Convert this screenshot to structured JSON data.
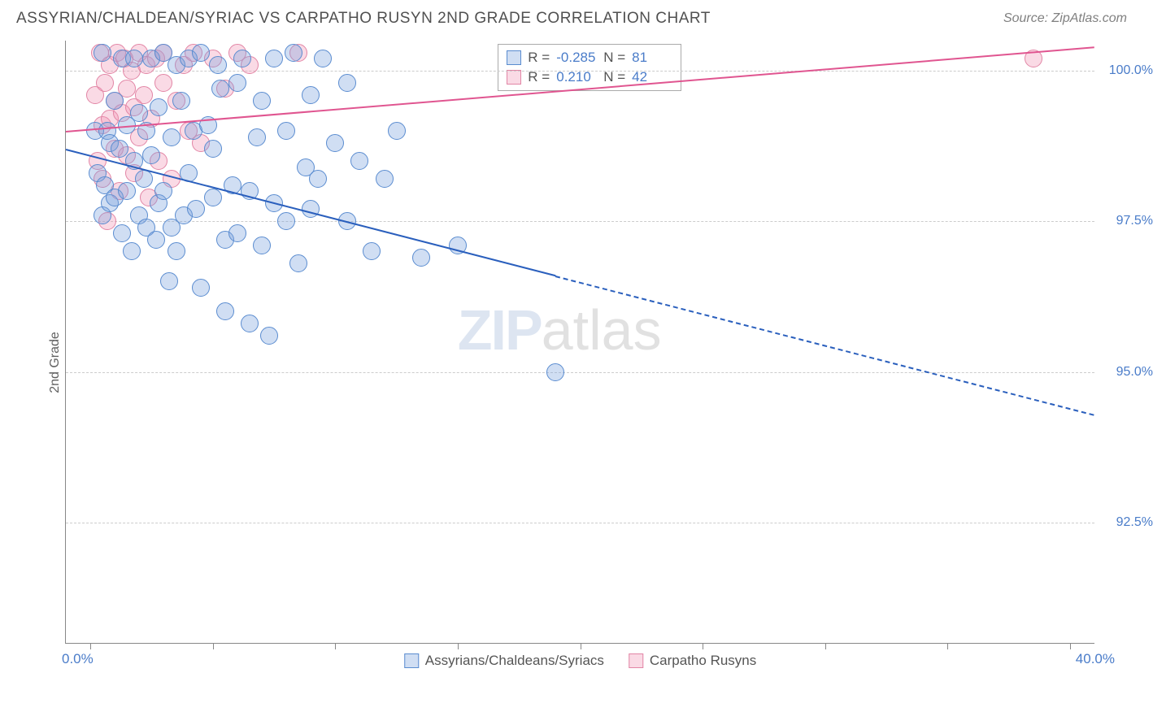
{
  "title": "ASSYRIAN/CHALDEAN/SYRIAC VS CARPATHO RUSYN 2ND GRADE CORRELATION CHART",
  "source_label": "Source:",
  "source_site": "ZipAtlas.com",
  "watermark": {
    "part1": "ZIP",
    "part2": "atlas"
  },
  "y_axis": {
    "label": "2nd Grade",
    "min": 90.5,
    "max": 100.5,
    "ticks": [
      92.5,
      95.0,
      97.5,
      100.0
    ],
    "tick_labels": [
      "92.5%",
      "95.0%",
      "97.5%",
      "100.0%"
    ],
    "tick_color": "#4a7cc9",
    "grid_color": "#cccccc"
  },
  "x_axis": {
    "min": -1.0,
    "max": 41.0,
    "left_label": "0.0%",
    "right_label": "40.0%",
    "ticks": [
      0,
      5,
      10,
      15,
      20,
      25,
      30,
      35,
      40
    ],
    "label_color": "#4a7cc9"
  },
  "series": {
    "blue": {
      "name": "Assyrians/Chaldeans/Syriacs",
      "fill": "rgba(120,160,220,0.35)",
      "stroke": "#5a8cd0",
      "line_color": "#2a5fbd",
      "marker_radius": 11,
      "R": "-0.285",
      "N": "81",
      "trend": {
        "x1": -1,
        "y1": 98.7,
        "x2": 41,
        "y2": 94.3,
        "solid_until_x": 19
      },
      "points": [
        [
          0.2,
          99.0
        ],
        [
          0.3,
          98.3
        ],
        [
          0.5,
          100.3
        ],
        [
          0.5,
          97.6
        ],
        [
          0.6,
          98.1
        ],
        [
          0.7,
          99.0
        ],
        [
          0.8,
          97.8
        ],
        [
          0.8,
          98.8
        ],
        [
          1.0,
          99.5
        ],
        [
          1.0,
          97.9
        ],
        [
          1.2,
          98.7
        ],
        [
          1.3,
          100.2
        ],
        [
          1.3,
          97.3
        ],
        [
          1.5,
          98.0
        ],
        [
          1.5,
          99.1
        ],
        [
          1.7,
          97.0
        ],
        [
          1.8,
          100.2
        ],
        [
          1.8,
          98.5
        ],
        [
          2.0,
          99.3
        ],
        [
          2.0,
          97.6
        ],
        [
          2.2,
          98.2
        ],
        [
          2.3,
          99.0
        ],
        [
          2.3,
          97.4
        ],
        [
          2.5,
          100.2
        ],
        [
          2.5,
          98.6
        ],
        [
          2.7,
          97.2
        ],
        [
          2.8,
          97.8
        ],
        [
          2.8,
          99.4
        ],
        [
          3.0,
          98.0
        ],
        [
          3.0,
          100.3
        ],
        [
          3.2,
          96.5
        ],
        [
          3.3,
          97.4
        ],
        [
          3.3,
          98.9
        ],
        [
          3.5,
          100.1
        ],
        [
          3.5,
          97.0
        ],
        [
          3.7,
          99.5
        ],
        [
          3.8,
          97.6
        ],
        [
          4.0,
          98.3
        ],
        [
          4.0,
          100.2
        ],
        [
          4.2,
          99.0
        ],
        [
          4.3,
          97.7
        ],
        [
          4.5,
          96.4
        ],
        [
          4.5,
          100.3
        ],
        [
          4.8,
          99.1
        ],
        [
          5.0,
          97.9
        ],
        [
          5.0,
          98.7
        ],
        [
          5.2,
          100.1
        ],
        [
          5.3,
          99.7
        ],
        [
          5.5,
          97.2
        ],
        [
          5.5,
          96.0
        ],
        [
          5.8,
          98.1
        ],
        [
          6.0,
          99.8
        ],
        [
          6.0,
          97.3
        ],
        [
          6.2,
          100.2
        ],
        [
          6.5,
          98.0
        ],
        [
          6.5,
          95.8
        ],
        [
          6.8,
          98.9
        ],
        [
          7.0,
          99.5
        ],
        [
          7.0,
          97.1
        ],
        [
          7.3,
          95.6
        ],
        [
          7.5,
          97.8
        ],
        [
          7.5,
          100.2
        ],
        [
          8.0,
          97.5
        ],
        [
          8.0,
          99.0
        ],
        [
          8.3,
          100.3
        ],
        [
          8.5,
          96.8
        ],
        [
          8.8,
          98.4
        ],
        [
          9.0,
          97.7
        ],
        [
          9.0,
          99.6
        ],
        [
          9.3,
          98.2
        ],
        [
          9.5,
          100.2
        ],
        [
          10.0,
          98.8
        ],
        [
          10.5,
          97.5
        ],
        [
          10.5,
          99.8
        ],
        [
          11.0,
          98.5
        ],
        [
          11.5,
          97.0
        ],
        [
          12.0,
          98.2
        ],
        [
          12.5,
          99.0
        ],
        [
          13.5,
          96.9
        ],
        [
          15.0,
          97.1
        ],
        [
          19.0,
          95.0
        ]
      ]
    },
    "pink": {
      "name": "Carpatho Rusyns",
      "fill": "rgba(240,150,180,0.35)",
      "stroke": "#e285a5",
      "line_color": "#e05590",
      "marker_radius": 11,
      "R": "0.210",
      "N": "42",
      "trend": {
        "x1": -1,
        "y1": 99.0,
        "x2": 41,
        "y2": 100.4,
        "solid_until_x": 41
      },
      "points": [
        [
          0.2,
          99.6
        ],
        [
          0.3,
          98.5
        ],
        [
          0.4,
          100.3
        ],
        [
          0.5,
          99.1
        ],
        [
          0.5,
          98.2
        ],
        [
          0.6,
          99.8
        ],
        [
          0.7,
          97.5
        ],
        [
          0.8,
          100.1
        ],
        [
          0.8,
          99.2
        ],
        [
          1.0,
          98.7
        ],
        [
          1.0,
          99.5
        ],
        [
          1.1,
          100.3
        ],
        [
          1.2,
          98.0
        ],
        [
          1.3,
          99.3
        ],
        [
          1.4,
          100.2
        ],
        [
          1.5,
          98.6
        ],
        [
          1.5,
          99.7
        ],
        [
          1.7,
          100.0
        ],
        [
          1.8,
          98.3
        ],
        [
          1.8,
          99.4
        ],
        [
          2.0,
          100.3
        ],
        [
          2.0,
          98.9
        ],
        [
          2.2,
          99.6
        ],
        [
          2.3,
          100.1
        ],
        [
          2.4,
          97.9
        ],
        [
          2.5,
          99.2
        ],
        [
          2.7,
          100.2
        ],
        [
          2.8,
          98.5
        ],
        [
          3.0,
          99.8
        ],
        [
          3.0,
          100.3
        ],
        [
          3.3,
          98.2
        ],
        [
          3.5,
          99.5
        ],
        [
          3.8,
          100.1
        ],
        [
          4.0,
          99.0
        ],
        [
          4.2,
          100.3
        ],
        [
          4.5,
          98.8
        ],
        [
          5.0,
          100.2
        ],
        [
          5.5,
          99.7
        ],
        [
          6.0,
          100.3
        ],
        [
          6.5,
          100.1
        ],
        [
          8.5,
          100.3
        ],
        [
          38.5,
          100.2
        ]
      ]
    }
  },
  "stats_labels": {
    "R": "R  =",
    "N": "N  ="
  },
  "legend_swatch_border": {
    "blue": "#5a8cd0",
    "pink": "#e285a5"
  }
}
